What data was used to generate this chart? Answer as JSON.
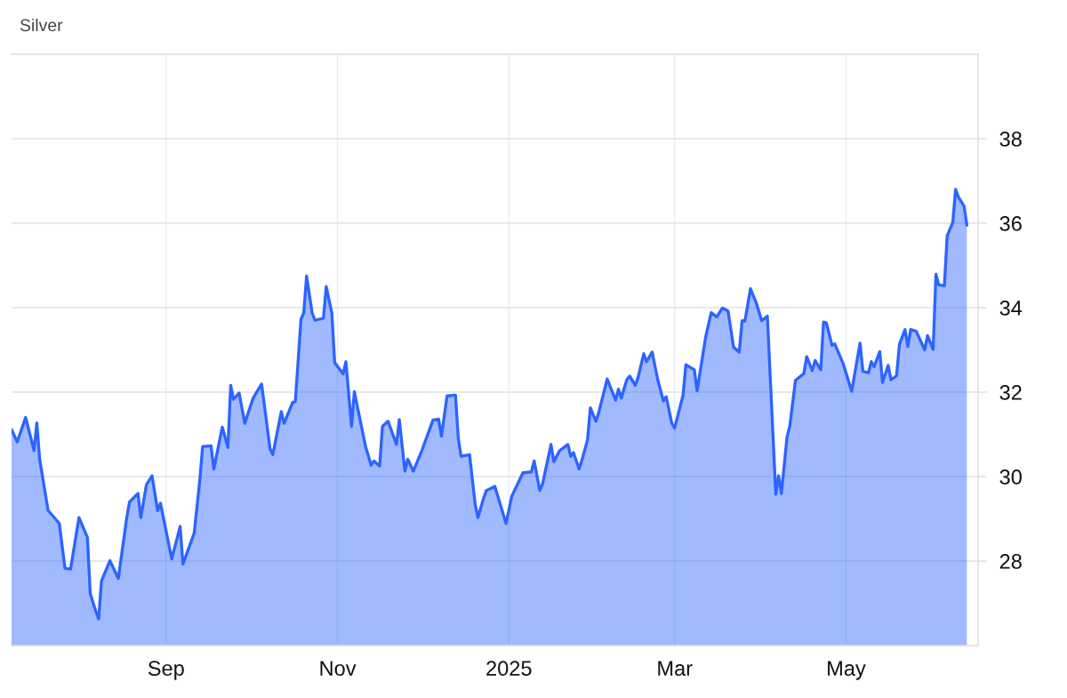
{
  "chart_data": {
    "type": "area",
    "title": "Silver",
    "x": [
      "2024-07-08",
      "2024-07-10",
      "2024-07-13",
      "2024-07-16",
      "2024-07-17",
      "2024-07-18",
      "2024-07-21",
      "2024-07-25",
      "2024-07-27",
      "2024-07-29",
      "2024-08-01",
      "2024-08-04",
      "2024-08-05",
      "2024-08-07",
      "2024-08-08",
      "2024-08-09",
      "2024-08-12",
      "2024-08-15",
      "2024-08-18",
      "2024-08-19",
      "2024-08-22",
      "2024-08-23",
      "2024-08-25",
      "2024-08-27",
      "2024-08-29",
      "2024-08-30",
      "2024-09-03",
      "2024-09-06",
      "2024-09-07",
      "2024-09-11",
      "2024-09-13",
      "2024-09-14",
      "2024-09-17",
      "2024-09-18",
      "2024-09-21",
      "2024-09-23",
      "2024-09-24",
      "2024-09-25",
      "2024-09-27",
      "2024-09-29",
      "2024-10-02",
      "2024-10-05",
      "2024-10-08",
      "2024-10-09",
      "2024-10-12",
      "2024-10-13",
      "2024-10-16",
      "2024-10-17",
      "2024-10-19",
      "2024-10-20",
      "2024-10-21",
      "2024-10-23",
      "2024-10-24",
      "2024-10-27",
      "2024-10-28",
      "2024-10-30",
      "2024-10-31",
      "2024-11-03",
      "2024-11-04",
      "2024-11-06",
      "2024-11-07",
      "2024-11-11",
      "2024-11-13",
      "2024-11-14",
      "2024-11-16",
      "2024-11-17",
      "2024-11-19",
      "2024-11-22",
      "2024-11-23",
      "2024-11-25",
      "2024-11-26",
      "2024-11-28",
      "2024-12-01",
      "2024-12-05",
      "2024-12-07",
      "2024-12-08",
      "2024-12-10",
      "2024-12-13",
      "2024-12-14",
      "2024-12-15",
      "2024-12-18",
      "2024-12-20",
      "2024-12-21",
      "2024-12-23",
      "2024-12-24",
      "2024-12-27",
      "2024-12-31",
      "2025-01-02",
      "2025-01-05",
      "2025-01-06",
      "2025-01-09",
      "2025-01-10",
      "2025-01-12",
      "2025-01-13",
      "2025-01-16",
      "2025-01-17",
      "2025-01-19",
      "2025-01-22",
      "2025-01-23",
      "2025-01-24",
      "2025-01-26",
      "2025-01-27",
      "2025-01-29",
      "2025-01-30",
      "2025-02-01",
      "2025-02-02",
      "2025-02-05",
      "2025-02-08",
      "2025-02-09",
      "2025-02-10",
      "2025-02-12",
      "2025-02-13",
      "2025-02-15",
      "2025-02-16",
      "2025-02-18",
      "2025-02-19",
      "2025-02-21",
      "2025-02-23",
      "2025-02-25",
      "2025-02-26",
      "2025-02-28",
      "2025-03-01",
      "2025-03-04",
      "2025-03-05",
      "2025-03-08",
      "2025-03-09",
      "2025-03-12",
      "2025-03-14",
      "2025-03-16",
      "2025-03-18",
      "2025-03-20",
      "2025-03-22",
      "2025-03-24",
      "2025-03-25",
      "2025-03-26",
      "2025-03-28",
      "2025-03-30",
      "2025-04-01",
      "2025-04-03",
      "2025-04-06",
      "2025-04-07",
      "2025-04-08",
      "2025-04-10",
      "2025-04-11",
      "2025-04-13",
      "2025-04-16",
      "2025-04-17",
      "2025-04-19",
      "2025-04-20",
      "2025-04-22",
      "2025-04-23",
      "2025-04-24",
      "2025-04-26",
      "2025-04-27",
      "2025-04-30",
      "2025-05-03",
      "2025-05-06",
      "2025-05-07",
      "2025-05-09",
      "2025-05-10",
      "2025-05-11",
      "2025-05-13",
      "2025-05-14",
      "2025-05-16",
      "2025-05-17",
      "2025-05-19",
      "2025-05-20",
      "2025-05-22",
      "2025-05-23",
      "2025-05-24",
      "2025-05-26",
      "2025-05-29",
      "2025-05-30",
      "2025-06-01",
      "2025-06-02",
      "2025-06-03",
      "2025-06-05",
      "2025-06-06",
      "2025-06-08",
      "2025-06-09",
      "2025-06-10",
      "2025-06-12",
      "2025-06-13"
    ],
    "series": [
      {
        "color": "#2d64ff",
        "values": [
          31.11,
          30.82,
          31.4,
          30.62,
          31.27,
          30.41,
          29.2,
          28.89,
          27.83,
          27.81,
          29.03,
          28.56,
          27.23,
          26.81,
          26.63,
          27.53,
          28.01,
          27.59,
          29.03,
          29.4,
          29.6,
          29.03,
          29.81,
          30.02,
          29.19,
          29.37,
          28.05,
          28.82,
          27.93,
          28.66,
          29.92,
          30.71,
          30.73,
          30.18,
          31.17,
          30.69,
          32.16,
          31.83,
          31.98,
          31.26,
          31.86,
          32.19,
          30.66,
          30.52,
          31.54,
          31.26,
          31.75,
          31.78,
          33.72,
          33.87,
          34.75,
          33.87,
          33.7,
          33.75,
          34.5,
          33.87,
          32.7,
          32.43,
          32.72,
          31.19,
          32.01,
          30.71,
          30.27,
          30.37,
          30.25,
          31.19,
          31.31,
          30.76,
          31.35,
          30.13,
          30.41,
          30.13,
          30.61,
          31.34,
          31.36,
          30.96,
          31.91,
          31.93,
          30.9,
          30.48,
          30.52,
          29.35,
          29.03,
          29.49,
          29.67,
          29.77,
          28.89,
          29.53,
          29.95,
          30.09,
          30.11,
          30.37,
          29.67,
          29.83,
          30.76,
          30.35,
          30.61,
          30.76,
          30.48,
          30.57,
          30.18,
          30.39,
          30.87,
          31.63,
          31.31,
          31.52,
          32.31,
          31.81,
          32.07,
          31.86,
          32.3,
          32.38,
          32.16,
          32.35,
          32.91,
          32.72,
          32.95,
          32.29,
          31.79,
          31.89,
          31.26,
          31.15,
          31.93,
          32.65,
          32.53,
          32.03,
          33.29,
          33.88,
          33.78,
          33.99,
          33.92,
          33.06,
          32.95,
          33.69,
          33.68,
          34.45,
          34.12,
          33.69,
          33.8,
          29.58,
          30.02,
          29.6,
          30.94,
          31.2,
          32.28,
          32.44,
          32.84,
          32.51,
          32.75,
          32.53,
          33.66,
          33.64,
          33.11,
          33.14,
          32.67,
          32.02,
          33.16,
          32.49,
          32.46,
          32.72,
          32.6,
          32.96,
          32.23,
          32.63,
          32.29,
          32.39,
          33.13,
          33.48,
          33.08,
          33.48,
          33.44,
          33.0,
          33.34,
          33.01,
          34.79,
          34.54,
          34.52,
          35.7,
          36.02,
          36.8,
          36.62,
          36.41,
          35.95
        ]
      }
    ],
    "xlim": [
      "2024-07-08",
      "2025-06-17"
    ],
    "xticks": [
      {
        "value": "2024-09-01",
        "label": "Sep"
      },
      {
        "value": "2024-11-01",
        "label": "Nov"
      },
      {
        "value": "2025-01-01",
        "label": "2025"
      },
      {
        "value": "2025-03-01",
        "label": "Mar"
      },
      {
        "value": "2025-05-01",
        "label": "May"
      }
    ],
    "ylim": [
      26,
      40
    ],
    "yticks": [
      28,
      30,
      32,
      34,
      36,
      38
    ],
    "grid": true
  }
}
